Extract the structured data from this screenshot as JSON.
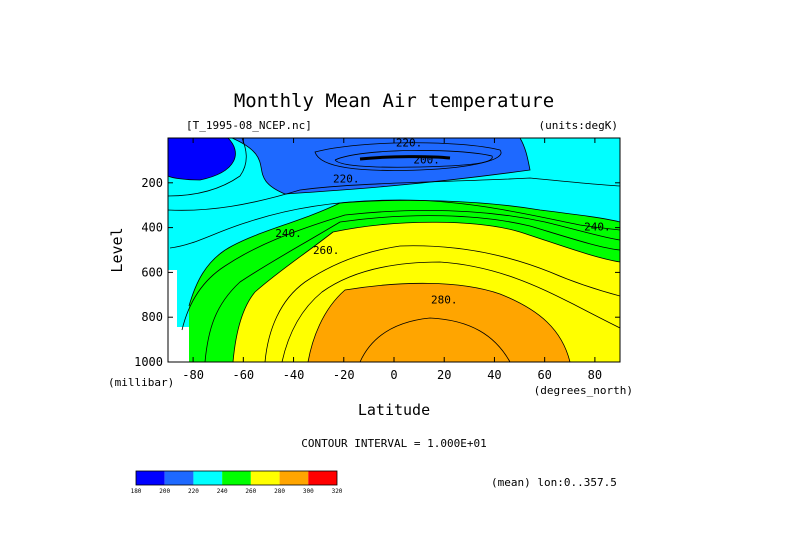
{
  "header": {
    "title": "Monthly Mean Air temperature",
    "file_label": "[T_1995-08_NCEP.nc]",
    "units_label": "(units:degK)"
  },
  "footer": {
    "contour_interval": "CONTOUR INTERVAL = 1.000E+01",
    "mean_note": "(mean) lon:0..357.5"
  },
  "chart_data": {
    "type": "heatmap",
    "title": "Monthly Mean Air temperature",
    "xlabel": "Latitude",
    "x_units": "(degrees_north)",
    "ylabel": "Level",
    "y_units": "(millibar)",
    "xlim": [
      -90,
      90
    ],
    "ylim": [
      1000,
      0
    ],
    "x_ticks": [
      -80,
      -60,
      -40,
      -20,
      0,
      20,
      40,
      60,
      80
    ],
    "y_ticks": [
      200,
      400,
      600,
      800,
      1000
    ],
    "contour_interval": 10,
    "contour_labels": [
      {
        "text": "220.",
        "lat": 6,
        "level": 20
      },
      {
        "text": "200.",
        "lat": 13,
        "level": 95
      },
      {
        "text": "220.",
        "lat": -19,
        "level": 180
      },
      {
        "text": "240.",
        "lat": -42,
        "level": 425
      },
      {
        "text": "240.",
        "lat": 81,
        "level": 395
      },
      {
        "text": "260.",
        "lat": -27,
        "level": 500
      },
      {
        "text": "280.",
        "lat": 20,
        "level": 720
      }
    ],
    "colorbar": {
      "levels": [
        180,
        200,
        220,
        240,
        260,
        280,
        300,
        320
      ],
      "colors": [
        "#0000ff",
        "#1e69ff",
        "#00ffff",
        "#00ff00",
        "#ffff00",
        "#ffa500",
        "#ff0000"
      ]
    }
  }
}
